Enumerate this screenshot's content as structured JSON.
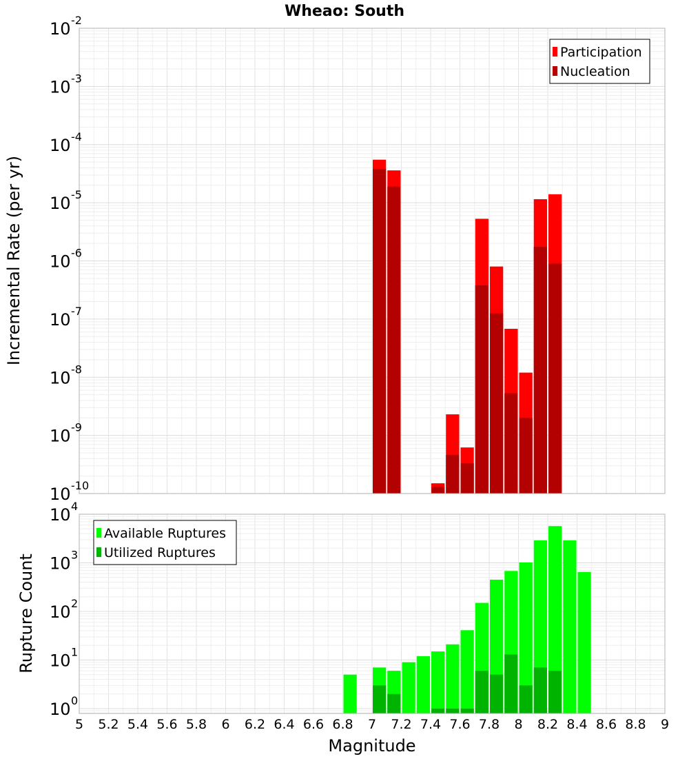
{
  "chart_data": {
    "type": "bar",
    "title": "Wheao: South",
    "xlabel": "Magnitude",
    "xlim": [
      5,
      9
    ],
    "x_ticks": [
      "5",
      "5.2",
      "5.4",
      "5.6",
      "5.8",
      "6",
      "6.2",
      "6.4",
      "6.6",
      "6.8",
      "7",
      "7.2",
      "7.4",
      "7.6",
      "7.8",
      "8",
      "8.2",
      "8.4",
      "8.6",
      "8.8",
      "9"
    ],
    "bin_width": 0.1,
    "grid": true,
    "panels": [
      {
        "ylabel": "Incremental Rate (per yr)",
        "yscale": "log",
        "ylim_exponents": [
          -10,
          -2
        ],
        "y_tick_exponents": [
          -10,
          -9,
          -8,
          -7,
          -6,
          -5,
          -4,
          -3,
          -2
        ],
        "legend_position": "top-right",
        "series": [
          {
            "name": "Participation",
            "color": "#ff0000",
            "x": [
              7.05,
              7.15,
              7.45,
              7.55,
              7.65,
              7.75,
              7.85,
              7.95,
              8.05,
              8.15,
              8.25
            ],
            "values": [
              5.5e-05,
              3.6e-05,
              1.5e-10,
              2.3e-09,
              6.2e-10,
              5.3e-06,
              8e-07,
              6.8e-08,
              1.2e-08,
              1.15e-05,
              1.4e-05
            ]
          },
          {
            "name": "Nucleation",
            "color": "#b30000",
            "x": [
              7.05,
              7.15,
              7.45,
              7.55,
              7.65,
              7.75,
              7.85,
              7.95,
              8.05,
              8.15,
              8.25
            ],
            "values": [
              3.8e-05,
              1.9e-05,
              1.3e-10,
              4.6e-10,
              3.3e-10,
              3.8e-07,
              1.25e-07,
              5.3e-09,
              2e-09,
              1.75e-06,
              9e-07
            ]
          }
        ]
      },
      {
        "ylabel": "Rupture Count",
        "yscale": "log",
        "ylim_exponents": [
          -0.1,
          4
        ],
        "y_tick_exponents": [
          0,
          1,
          2,
          3,
          4
        ],
        "legend_position": "top-left",
        "series": [
          {
            "name": "Available Ruptures",
            "color": "#00ff00",
            "x": [
              6.85,
              7.05,
              7.15,
              7.25,
              7.35,
              7.45,
              7.55,
              7.65,
              7.75,
              7.85,
              7.95,
              8.05,
              8.15,
              8.25,
              8.35,
              8.45
            ],
            "values": [
              5,
              7,
              6,
              9,
              12,
              15,
              21,
              41,
              150,
              450,
              680,
              1020,
              2900,
              5700,
              2900,
              650
            ]
          },
          {
            "name": "Utilized Ruptures",
            "color": "#00b300",
            "x": [
              7.05,
              7.15,
              7.45,
              7.55,
              7.65,
              7.75,
              7.85,
              7.95,
              8.05,
              8.15,
              8.25
            ],
            "values": [
              3,
              2,
              1,
              1,
              1,
              6,
              5,
              13,
              3,
              7,
              6
            ]
          }
        ]
      }
    ]
  }
}
